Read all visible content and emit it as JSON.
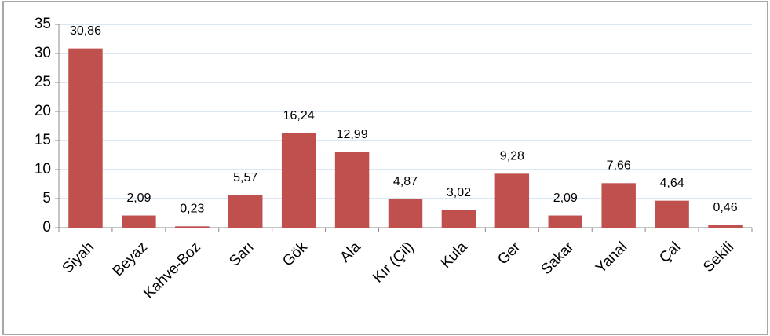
{
  "chart_data": {
    "type": "bar",
    "categories": [
      "Siyah",
      "Beyaz",
      "Kahve-Boz",
      "Sarı",
      "Gök",
      "Ala",
      "Kır (Çil)",
      "Kula",
      "Ger",
      "Sakar",
      "Yanal",
      "Çal",
      "Sekili"
    ],
    "values": [
      30.86,
      2.09,
      0.23,
      5.57,
      16.24,
      12.99,
      4.87,
      3.02,
      9.28,
      2.09,
      7.66,
      4.64,
      0.46
    ],
    "value_labels": [
      "30,86",
      "2,09",
      "0,23",
      "5,57",
      "16,24",
      "12,99",
      "4,87",
      "3,02",
      "9,28",
      "2,09",
      "7,66",
      "4,64",
      "0,46"
    ],
    "color": "#c0504d",
    "ylim": [
      0,
      35
    ],
    "yticks": [
      0,
      5,
      10,
      15,
      20,
      25,
      30,
      35
    ],
    "grid": true
  }
}
